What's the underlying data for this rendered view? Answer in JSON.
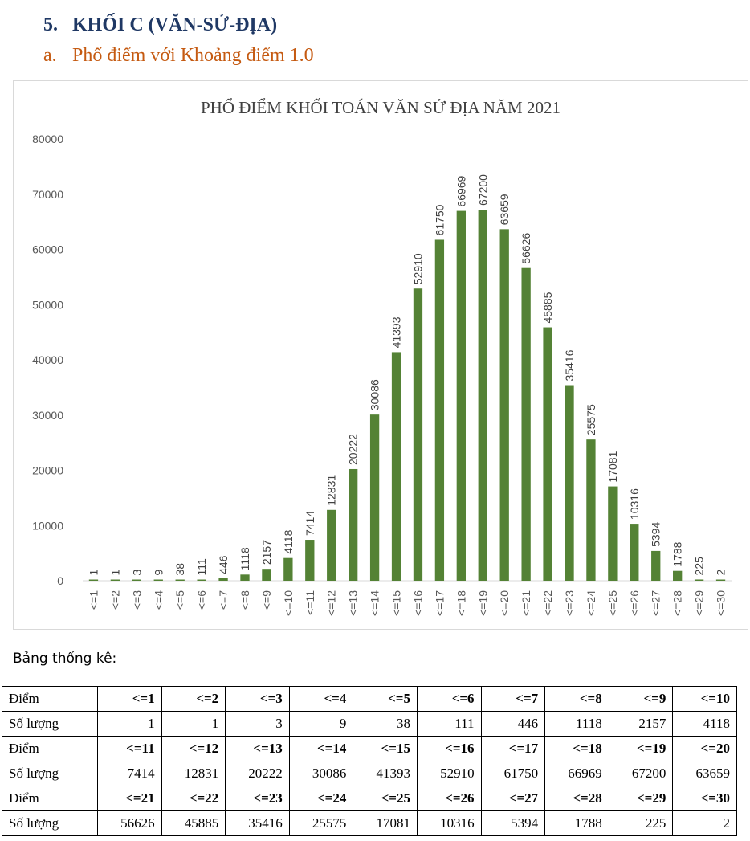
{
  "heading": {
    "number": "5.",
    "text": "KHỐI C (VĂN-SỬ-ĐỊA)"
  },
  "subheading": {
    "number": "a.",
    "text": "Phổ điểm với Khoảng điểm 1.0"
  },
  "chart_data": {
    "type": "bar",
    "title": "PHỔ ĐIỂM KHỐI TOÁN VĂN SỬ ĐỊA NĂM 2021",
    "categories": [
      "<=1",
      "<=2",
      "<=3",
      "<=4",
      "<=5",
      "<=6",
      "<=7",
      "<=8",
      "<=9",
      "<=10",
      "<=11",
      "<=12",
      "<=13",
      "<=14",
      "<=15",
      "<=16",
      "<=17",
      "<=18",
      "<=19",
      "<=20",
      "<=21",
      "<=22",
      "<=23",
      "<=24",
      "<=25",
      "<=26",
      "<=27",
      "<=28",
      "<=29",
      "<=30"
    ],
    "values": [
      1,
      1,
      3,
      9,
      38,
      111,
      446,
      1118,
      2157,
      4118,
      7414,
      12831,
      20222,
      30086,
      41393,
      52910,
      61750,
      66969,
      67200,
      63659,
      56626,
      45885,
      35416,
      25575,
      17081,
      10316,
      5394,
      1788,
      225,
      2
    ],
    "ylim": [
      0,
      80000
    ],
    "yticks": [
      0,
      10000,
      20000,
      30000,
      40000,
      50000,
      60000,
      70000,
      80000
    ],
    "xlabel": "",
    "ylabel": "",
    "grid": false,
    "bar_color": "#548235",
    "data_labels": true
  },
  "stats": {
    "caption": "Bảng thống kê:",
    "point_label": "Điểm",
    "count_label": "Số lượng",
    "blocks": [
      {
        "points": [
          "<=1",
          "<=2",
          "<=3",
          "<=4",
          "<=5",
          "<=6",
          "<=7",
          "<=8",
          "<=9",
          "<=10"
        ],
        "counts": [
          "1",
          "1",
          "3",
          "9",
          "38",
          "111",
          "446",
          "1118",
          "2157",
          "4118"
        ]
      },
      {
        "points": [
          "<=11",
          "<=12",
          "<=13",
          "<=14",
          "<=15",
          "<=16",
          "<=17",
          "<=18",
          "<=19",
          "<=20"
        ],
        "counts": [
          "7414",
          "12831",
          "20222",
          "30086",
          "41393",
          "52910",
          "61750",
          "66969",
          "67200",
          "63659"
        ]
      },
      {
        "points": [
          "<=21",
          "<=22",
          "<=23",
          "<=24",
          "<=25",
          "<=26",
          "<=27",
          "<=28",
          "<=29",
          "<=30"
        ],
        "counts": [
          "56626",
          "45885",
          "35416",
          "25575",
          "17081",
          "10316",
          "5394",
          "1788",
          "225",
          "2"
        ]
      }
    ]
  }
}
